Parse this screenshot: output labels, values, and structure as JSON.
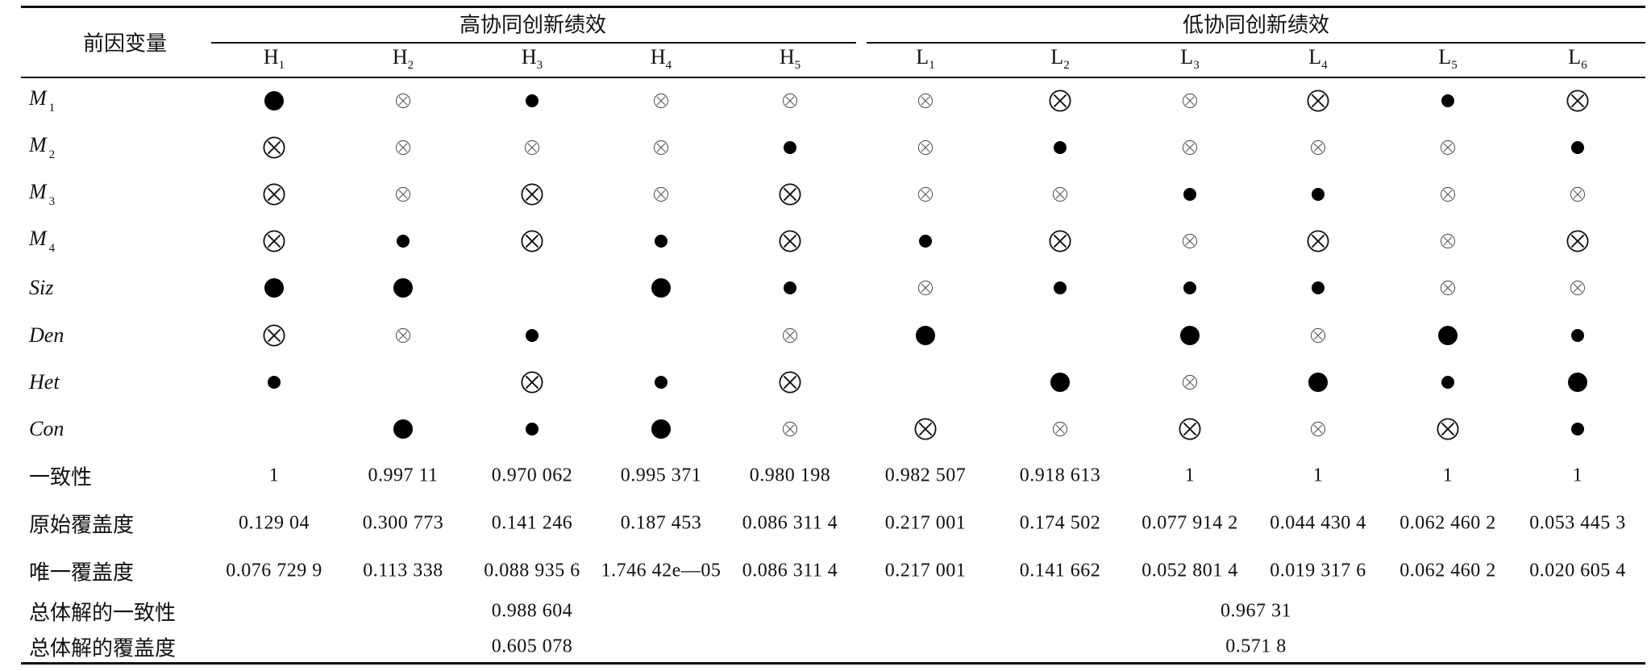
{
  "table": {
    "corner_header": "前因变量",
    "group_high": "高协同创新绩效",
    "group_low": "低协同创新绩效",
    "columns": [
      {
        "base": "H",
        "sub": "1"
      },
      {
        "base": "H",
        "sub": "2"
      },
      {
        "base": "H",
        "sub": "3"
      },
      {
        "base": "H",
        "sub": "4"
      },
      {
        "base": "H",
        "sub": "5"
      },
      {
        "base": "L",
        "sub": "1"
      },
      {
        "base": "L",
        "sub": "2"
      },
      {
        "base": "L",
        "sub": "3"
      },
      {
        "base": "L",
        "sub": "4"
      },
      {
        "base": "L",
        "sub": "5"
      },
      {
        "base": "L",
        "sub": "6"
      }
    ],
    "symbol_rows": [
      {
        "base": "M",
        "sub": "1",
        "cells": [
          "dot-big",
          "x-small",
          "dot-small",
          "x-small",
          "x-small",
          "x-small",
          "x-big",
          "x-small",
          "x-big",
          "dot-small",
          "x-big"
        ]
      },
      {
        "base": "M",
        "sub": "2",
        "cells": [
          "x-big",
          "x-small",
          "x-small",
          "x-small",
          "dot-small",
          "x-small",
          "dot-small",
          "x-small",
          "x-small",
          "x-small",
          "dot-small"
        ]
      },
      {
        "base": "M",
        "sub": "3",
        "cells": [
          "x-big",
          "x-small",
          "x-big",
          "x-small",
          "x-big",
          "x-small",
          "x-small",
          "dot-small",
          "dot-small",
          "x-small",
          "x-small"
        ]
      },
      {
        "base": "M",
        "sub": "4",
        "cells": [
          "x-big",
          "dot-small",
          "x-big",
          "dot-small",
          "x-big",
          "dot-small",
          "x-big",
          "x-small",
          "x-big",
          "x-small",
          "x-big"
        ]
      },
      {
        "base": "Siz",
        "sub": "",
        "cells": [
          "dot-big",
          "dot-big",
          "",
          "dot-big",
          "dot-small",
          "x-small",
          "dot-small",
          "dot-small",
          "dot-small",
          "x-small",
          "x-small"
        ]
      },
      {
        "base": "Den",
        "sub": "",
        "cells": [
          "x-big",
          "x-small",
          "dot-small",
          "",
          "x-small",
          "dot-big",
          "",
          "dot-big",
          "x-small",
          "dot-big",
          "dot-small"
        ]
      },
      {
        "base": "Het",
        "sub": "",
        "cells": [
          "dot-small",
          "",
          "x-big",
          "dot-small",
          "x-big",
          "",
          "dot-big",
          "x-small",
          "dot-big",
          "dot-small",
          "dot-big"
        ]
      },
      {
        "base": "Con",
        "sub": "",
        "cells": [
          "",
          "dot-big",
          "dot-small",
          "dot-big",
          "x-small",
          "x-big",
          "x-small",
          "x-big",
          "x-small",
          "x-big",
          "dot-small"
        ]
      }
    ],
    "consistency": {
      "label": "一致性",
      "values": [
        "1",
        "0.997 11",
        "0.970 062",
        "0.995 371",
        "0.980 198",
        "0.982 507",
        "0.918 613",
        "1",
        "1",
        "1",
        "1"
      ]
    },
    "raw_coverage": {
      "label": "原始覆盖度",
      "values": [
        "0.129 04",
        "0.300 773",
        "0.141 246",
        "0.187 453",
        "0.086 311 4",
        "0.217 001",
        "0.174 502",
        "0.077 914 2",
        "0.044 430 4",
        "0.062 460 2",
        "0.053 445 3"
      ]
    },
    "unique_coverage": {
      "label": "唯一覆盖度",
      "values": [
        "0.076 729 9",
        "0.113 338",
        "0.088 935 6",
        "1.746 42e—05",
        "0.086 311 4",
        "0.217 001",
        "0.141 662",
        "0.052 801 4",
        "0.019 317 6",
        "0.062 460 2",
        "0.020 605 4"
      ]
    },
    "overall_consistency": {
      "label": "总体解的一致性",
      "high": "0.988 604",
      "low": "0.967 31"
    },
    "overall_coverage": {
      "label": "总体解的覆盖度",
      "high": "0.605 078",
      "low": "0.571 8"
    }
  }
}
